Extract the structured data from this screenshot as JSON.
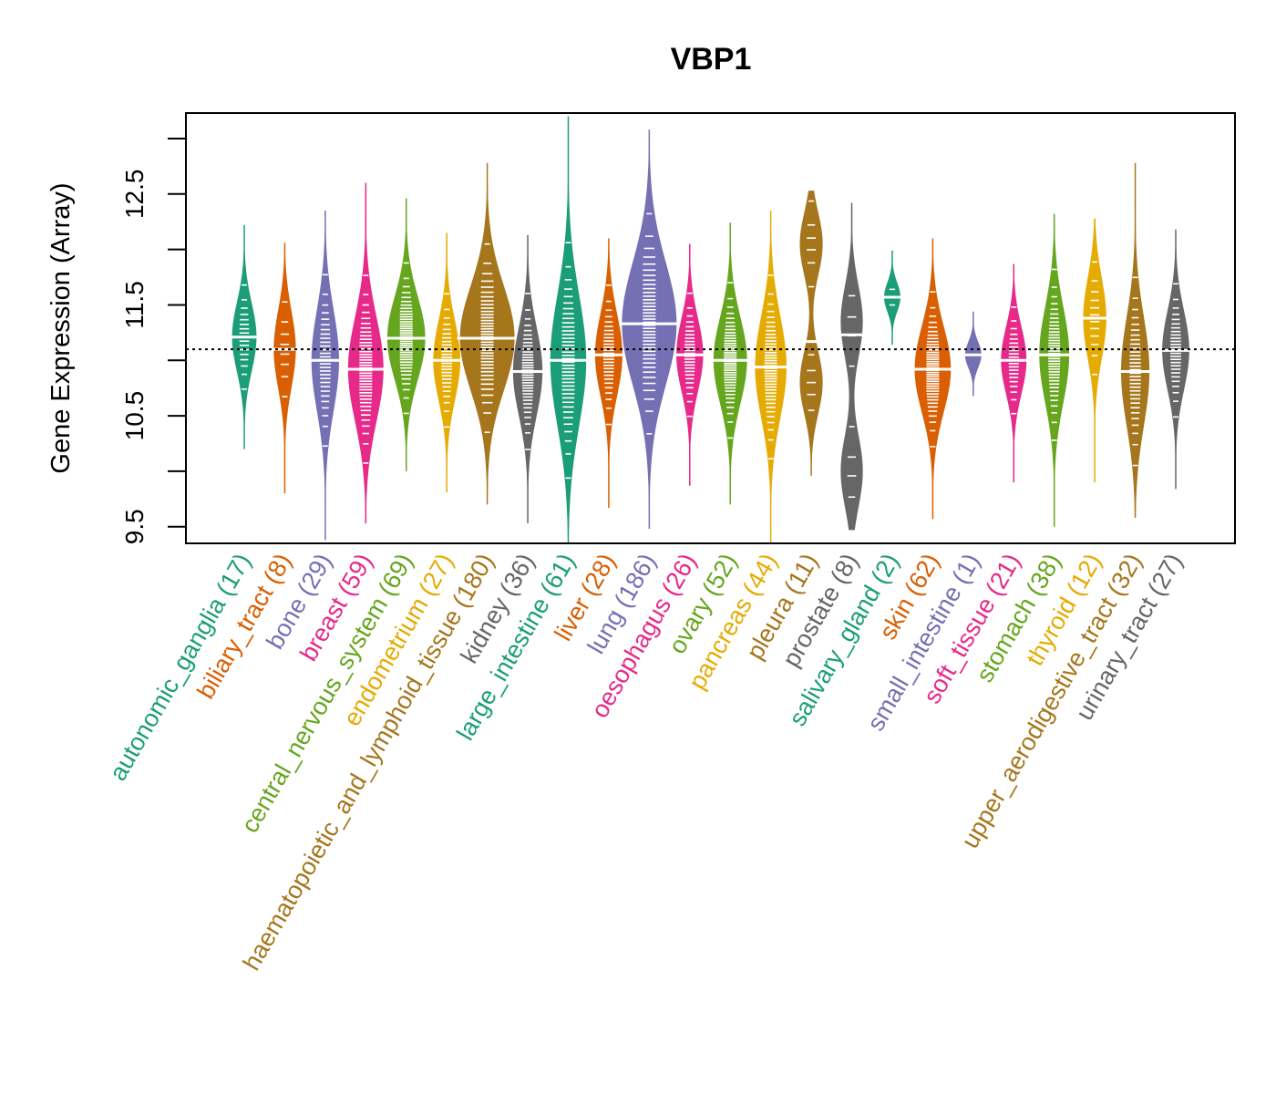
{
  "chart_data": {
    "type": "beanplot",
    "title": "VBP1",
    "xlabel": "",
    "ylabel": "Gene Expression (Array)",
    "ylim": [
      9.35,
      13.23
    ],
    "yticks": [
      9.5,
      10.5,
      11.5,
      12.5
    ],
    "yticks_minor": [
      10,
      11,
      12,
      13
    ],
    "reference_line": 11.1,
    "grid": false,
    "palette": [
      "#1B9E77",
      "#D95F02",
      "#7570B3",
      "#E7298A",
      "#66A61E",
      "#E6AB02",
      "#A6761D",
      "#666666"
    ],
    "groups": [
      {
        "name": "autonomic_ganglia",
        "n": 17,
        "label": "autonomic_ganglia (17)",
        "median": 11.21,
        "min": 10.2,
        "max": 12.22
      },
      {
        "name": "biliary_tract",
        "n": 8,
        "label": "biliary_tract (8)",
        "median": 11.1,
        "min": 9.8,
        "max": 12.06
      },
      {
        "name": "bone",
        "n": 29,
        "label": "bone (29)",
        "median": 11.0,
        "min": 9.38,
        "max": 12.35
      },
      {
        "name": "breast",
        "n": 59,
        "label": "breast (59)",
        "median": 10.92,
        "min": 9.53,
        "max": 12.6
      },
      {
        "name": "central_nervous_system",
        "n": 69,
        "label": "central_nervous_system (69)",
        "median": 11.2,
        "min": 10.0,
        "max": 12.46
      },
      {
        "name": "endometrium",
        "n": 27,
        "label": "endometrium (27)",
        "median": 11.0,
        "min": 9.81,
        "max": 12.15
      },
      {
        "name": "haematopoietic_and_lymphoid_tissue",
        "n": 180,
        "label": "haematopoietic_and_lymphoid_tissue (180)",
        "median": 11.2,
        "min": 9.7,
        "max": 12.78
      },
      {
        "name": "kidney",
        "n": 36,
        "label": "kidney (36)",
        "median": 10.9,
        "min": 9.53,
        "max": 12.13
      },
      {
        "name": "large_intestine",
        "n": 61,
        "label": "large_intestine (61)",
        "median": 11.0,
        "min": 9.35,
        "max": 13.2
      },
      {
        "name": "liver",
        "n": 28,
        "label": "liver (28)",
        "median": 11.05,
        "min": 9.67,
        "max": 12.1
      },
      {
        "name": "lung",
        "n": 186,
        "label": "lung (186)",
        "median": 11.33,
        "min": 9.48,
        "max": 13.08
      },
      {
        "name": "oesophagus",
        "n": 26,
        "label": "oesophagus (26)",
        "median": 11.05,
        "min": 9.87,
        "max": 12.05
      },
      {
        "name": "ovary",
        "n": 52,
        "label": "ovary (52)",
        "median": 11.0,
        "min": 9.7,
        "max": 12.24
      },
      {
        "name": "pancreas",
        "n": 44,
        "label": "pancreas (44)",
        "median": 10.94,
        "min": 9.35,
        "max": 12.35
      },
      {
        "name": "pleura",
        "n": 11,
        "label": "pleura (11)",
        "median": 11.17,
        "min": 9.96,
        "max": 12.53,
        "modes": [
          12.05,
          10.8
        ]
      },
      {
        "name": "prostate",
        "n": 8,
        "label": "prostate (8)",
        "median": 11.23,
        "min": 9.47,
        "max": 12.42,
        "modes": [
          11.35,
          10.0
        ]
      },
      {
        "name": "salivary_gland",
        "n": 2,
        "label": "salivary_gland (2)",
        "median": 11.57,
        "min": 11.14,
        "max": 11.99
      },
      {
        "name": "skin",
        "n": 62,
        "label": "skin (62)",
        "median": 10.92,
        "min": 9.57,
        "max": 12.1
      },
      {
        "name": "small_intestine",
        "n": 1,
        "label": "small_intestine (1)",
        "median": 11.05,
        "min": 10.68,
        "max": 11.44
      },
      {
        "name": "soft_tissue",
        "n": 21,
        "label": "soft_tissue (21)",
        "median": 11.0,
        "min": 9.9,
        "max": 11.87
      },
      {
        "name": "stomach",
        "n": 38,
        "label": "stomach (38)",
        "median": 11.05,
        "min": 9.5,
        "max": 12.32
      },
      {
        "name": "thyroid",
        "n": 12,
        "label": "thyroid (12)",
        "median": 11.38,
        "min": 9.9,
        "max": 12.28
      },
      {
        "name": "upper_aerodigestive_tract",
        "n": 32,
        "label": "upper_aerodigestive_tract (32)",
        "median": 10.9,
        "min": 9.58,
        "max": 12.78
      },
      {
        "name": "urinary_tract",
        "n": 27,
        "label": "urinary_tract (27)",
        "median": 11.09,
        "min": 9.84,
        "max": 12.18
      }
    ]
  }
}
